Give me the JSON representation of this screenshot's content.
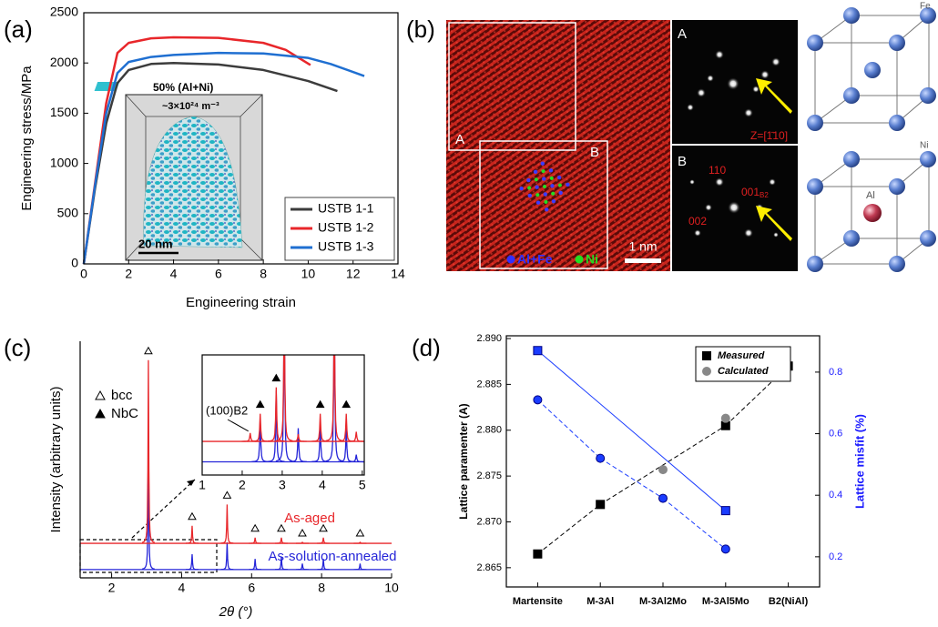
{
  "panel_labels": [
    "(a)",
    "(b)",
    "(c)",
    "(d)"
  ],
  "panel_b": {
    "hrtem": {
      "box_labels": [
        "A",
        "B"
      ],
      "scale_bar": "1 nm",
      "legend": [
        "Al+Fe",
        "Ni"
      ]
    },
    "fft_a": {
      "label": "A",
      "zone": "Z=[1̄10]"
    },
    "fft_b": {
      "label": "B",
      "spots": [
        "110",
        "002"
      ],
      "spot_b2": {
        "base": "001",
        "sub": "B2"
      }
    },
    "crystals": {
      "top": "Fe",
      "bottom_corner": "Ni",
      "bottom_center": "Al"
    }
  },
  "chart_data": [
    {
      "type": "line",
      "xlabel": "Engineering strain",
      "ylabel": "Engineering stress/MPa",
      "xlim": [
        0,
        14
      ],
      "xticks": [
        0,
        2,
        4,
        6,
        8,
        10,
        12,
        14
      ],
      "ylim": [
        0,
        2500
      ],
      "yticks": [
        0,
        500,
        1000,
        1500,
        2000,
        2500
      ],
      "legend": "lower right",
      "annotations": [
        "50% (Al+Ni)",
        "~3×10²⁴ m⁻³",
        "20 nm"
      ],
      "series": [
        {
          "name": "USTB 1-1",
          "color": "#3c3c3c",
          "x": [
            0,
            0.5,
            1,
            1.5,
            2,
            3,
            4,
            6,
            8,
            10,
            11.3
          ],
          "values": [
            0,
            750,
            1400,
            1800,
            1930,
            1990,
            2000,
            1985,
            1930,
            1820,
            1720
          ]
        },
        {
          "name": "USTB 1-2",
          "color": "#e8262a",
          "x": [
            0,
            0.5,
            1,
            1.5,
            2,
            3,
            4,
            6,
            8,
            9,
            10.1
          ],
          "values": [
            0,
            800,
            1600,
            2100,
            2200,
            2245,
            2255,
            2250,
            2200,
            2130,
            1980
          ]
        },
        {
          "name": "USTB 1-3",
          "color": "#1f6fd1",
          "x": [
            0,
            0.5,
            1,
            1.5,
            2,
            3,
            4,
            6,
            8,
            10,
            11,
            12.5
          ],
          "values": [
            0,
            780,
            1500,
            1900,
            2010,
            2060,
            2080,
            2100,
            2095,
            2050,
            1990,
            1870
          ]
        }
      ]
    },
    {
      "type": "peaks",
      "xlabel": "2θ (°)",
      "ylabel": "Intensity (arbitrary units)",
      "xlim": [
        1.1,
        10
      ],
      "xticks": [
        2,
        4,
        6,
        8,
        10
      ],
      "ylim": [
        0,
        100
      ],
      "phases": [
        "bcc",
        "NbC"
      ],
      "series": [
        {
          "name": "As-aged",
          "color": "#e8262a",
          "baseline": 14.6,
          "x": [
            3.05,
            4.3,
            5.3,
            6.1,
            6.85,
            7.45,
            8.05,
            9.1
          ],
          "values": [
            92,
            22,
            31,
            17,
            17,
            15,
            17,
            15
          ],
          "markers": [
            "bcc",
            "bcc",
            "bcc",
            "bcc",
            "bcc",
            "bcc",
            "bcc",
            "bcc"
          ]
        },
        {
          "name": "As-solution-annealed",
          "color": "#2424d8",
          "baseline": 3.5,
          "x": [
            3.05,
            4.3,
            5.3,
            6.1,
            6.85,
            7.45,
            8.05,
            9.1
          ],
          "values": [
            55,
            10,
            15,
            8,
            9,
            6,
            8,
            6
          ]
        }
      ]
    },
    {
      "type": "peaks",
      "xlim": [
        1,
        5.05
      ],
      "xticks": [
        1,
        2,
        3,
        4,
        5
      ],
      "ylim": [
        0,
        100
      ],
      "annotations": [
        "(100)B2"
      ],
      "series": [
        {
          "color": "#e8262a",
          "baseline": 28,
          "x": [
            2.2,
            2.45,
            2.85,
            3.05,
            3.4,
            3.95,
            4.3,
            4.6,
            4.85
          ],
          "values": [
            35,
            51,
            73,
            150,
            34,
            51,
            150,
            51,
            36
          ],
          "markers": [
            null,
            "NbC",
            "NbC",
            null,
            null,
            "NbC",
            null,
            "NbC",
            null
          ]
        },
        {
          "color": "#2424d8",
          "baseline": 11,
          "x": [
            2.45,
            2.85,
            3.05,
            3.4,
            3.95,
            4.3,
            4.6,
            4.85
          ],
          "values": [
            47,
            70,
            150,
            39,
            43,
            150,
            39,
            17
          ]
        }
      ]
    },
    {
      "type": "scatter",
      "ylabel": "Lattice paramenter (A)",
      "y2label": "Lattice misfit (%)",
      "categories": [
        "Martensite",
        "M-3Al",
        "M-3Al2Mo",
        "M-3Al5Mo",
        "B2(NiAl)"
      ],
      "ylim": [
        2.8629,
        2.8903
      ],
      "yticks": [
        2.865,
        {
          "value": 2.87,
          "label": "2.870"
        },
        2.875,
        {
          "value": 2.88,
          "label": "2.880"
        },
        2.885,
        {
          "value": 2.89,
          "label": "2.890"
        }
      ],
      "y2lim": [
        0.102,
        0.918
      ],
      "y2ticks": [
        0.2,
        0.4,
        0.6,
        0.8
      ],
      "legend": "upper center",
      "series": [
        {
          "name": "Measured",
          "color": "#000000",
          "marker": "square",
          "line": "dashed",
          "values": [
            2.8665,
            2.8719,
            null,
            2.8805,
            2.887
          ]
        },
        {
          "name": "Calculated",
          "color": "#888888",
          "marker": "circle",
          "values": [
            null,
            null,
            2.8757,
            2.8813,
            null
          ]
        },
        {
          "color": "#1a3cff",
          "marker": "square",
          "line": "solid",
          "axis": "y2",
          "values": [
            0.87,
            null,
            null,
            0.35,
            null
          ]
        },
        {
          "color": "#1a3cff",
          "marker": "circle",
          "line": "dashed",
          "axis": "y2",
          "values": [
            0.71,
            0.52,
            0.39,
            0.225,
            null
          ]
        }
      ]
    }
  ]
}
